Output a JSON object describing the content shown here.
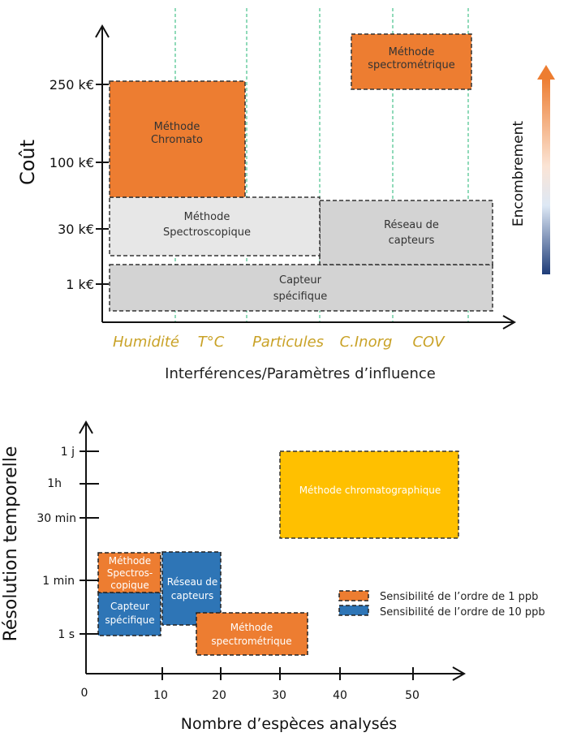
{
  "top": {
    "y_axis_label": "Coût",
    "x_axis_label": "Interférences/Paramètres d’influence",
    "y_ticks": [
      "250 k€",
      "100 k€",
      "30 k€",
      "1 k€"
    ],
    "x_categories": [
      "Humidité",
      "T°C",
      "Particules",
      "C.Inorg",
      "COV"
    ],
    "boxes": {
      "chromato": [
        "Méthode",
        "Chromato"
      ],
      "spectrometrique": [
        "Méthode",
        "spectrométrique"
      ],
      "spectroscopique": [
        "Méthode",
        "Spectroscopique"
      ],
      "reseau": [
        "Réseau de",
        "capteurs"
      ],
      "specifique": [
        "Capteur",
        "spécifique"
      ]
    },
    "gradient_label": "Encombrement",
    "colors": {
      "orange": "#ED7D31",
      "light_grey": "#E7E7E7",
      "grey": "#D3D3D3",
      "category_text": "#C9A227",
      "grid": "#22B573"
    }
  },
  "bottom": {
    "y_axis_label": "Résolution temporelle",
    "x_axis_label": "Nombre d’espèces analysés",
    "y_ticks": [
      "1 j",
      "1h",
      "30 min",
      "1 min",
      "1 s"
    ],
    "x_ticks": [
      "0",
      "10",
      "20",
      "30",
      "40",
      "50"
    ],
    "boxes": {
      "chromatographique": [
        "Méthode chromatographique"
      ],
      "spectro": [
        "Méthode",
        "Spectros-",
        "copique"
      ],
      "capteur": [
        "Capteur",
        "spécifique"
      ],
      "reseau": [
        "Réseau de",
        "capteurs"
      ],
      "spectrometrique": [
        "Méthode",
        "spectrométrique"
      ]
    },
    "legend": [
      "Sensibilité de l’ordre de 1 ppb",
      "Sensibilité de l’ordre de 10 ppb"
    ],
    "colors": {
      "orange": "#ED7D31",
      "blue": "#2E75B6",
      "yellow": "#FFC000"
    }
  }
}
